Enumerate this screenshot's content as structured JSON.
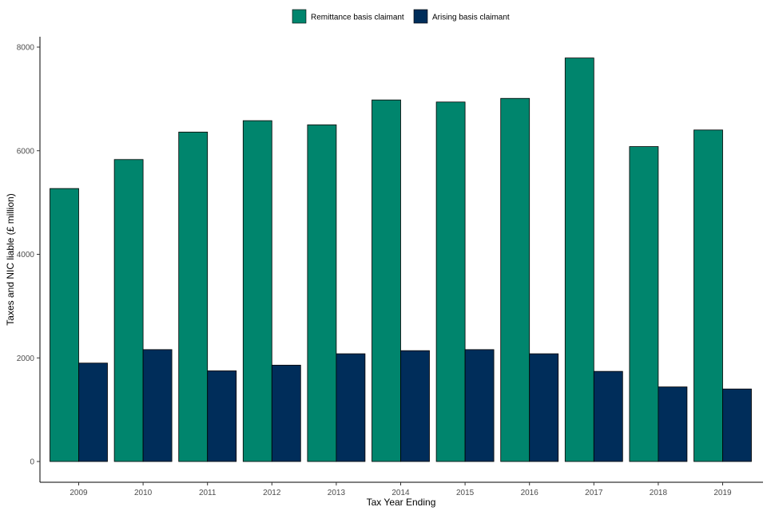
{
  "chart_data": {
    "type": "bar",
    "title": "",
    "xlabel": "Tax Year Ending",
    "ylabel": "Taxes and NIC liable (£ million)",
    "categories": [
      "2009",
      "2010",
      "2011",
      "2012",
      "2013",
      "2014",
      "2015",
      "2016",
      "2017",
      "2018",
      "2019"
    ],
    "series": [
      {
        "name": "Remittance basis claimant",
        "color": "#00856d",
        "values": [
          5270,
          5830,
          6360,
          6580,
          6500,
          6980,
          6940,
          7010,
          7790,
          6080,
          6400
        ]
      },
      {
        "name": "Arising basis claimant",
        "color": "#002d5a",
        "values": [
          1900,
          2160,
          1750,
          1860,
          2080,
          2140,
          2160,
          2080,
          1740,
          1440,
          1400
        ]
      }
    ],
    "ylim": [
      0,
      8000
    ],
    "yticks": [
      0,
      2000,
      4000,
      6000,
      8000
    ],
    "grid": false,
    "legend_position": "top"
  }
}
